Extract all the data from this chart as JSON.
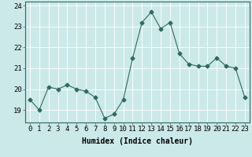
{
  "x": [
    0,
    1,
    2,
    3,
    4,
    5,
    6,
    7,
    8,
    9,
    10,
    11,
    12,
    13,
    14,
    15,
    16,
    17,
    18,
    19,
    20,
    21,
    22,
    23
  ],
  "y": [
    19.5,
    19.0,
    20.1,
    20.0,
    20.2,
    20.0,
    19.9,
    19.6,
    18.6,
    18.8,
    19.5,
    21.5,
    23.2,
    23.7,
    22.9,
    23.2,
    21.7,
    21.2,
    21.1,
    21.1,
    21.5,
    21.1,
    21.0,
    19.6
  ],
  "line_color": "#2e6b5e",
  "marker": "D",
  "marker_size": 2.5,
  "bg_color": "#cce9e9",
  "grid_color": "#ffffff",
  "xlabel": "Humidex (Indice chaleur)",
  "xlabel_fontsize": 7,
  "ylabel_ticks": [
    19,
    20,
    21,
    22,
    23,
    24
  ],
  "xtick_labels": [
    "0",
    "1",
    "2",
    "3",
    "4",
    "5",
    "6",
    "7",
    "8",
    "9",
    "10",
    "11",
    "12",
    "13",
    "14",
    "15",
    "16",
    "17",
    "18",
    "19",
    "20",
    "21",
    "22",
    "23"
  ],
  "xlim": [
    -0.5,
    23.5
  ],
  "ylim": [
    18.4,
    24.2
  ],
  "tick_fontsize": 6.5
}
